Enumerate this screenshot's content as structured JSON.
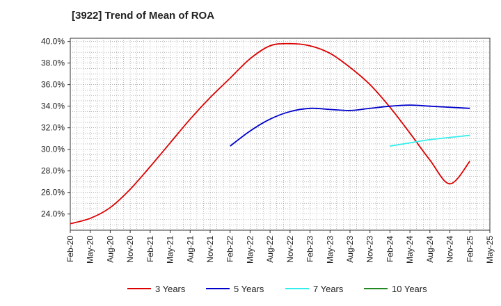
{
  "chart_data": {
    "type": "line",
    "title": "[3922]  Trend of Mean of ROA",
    "xlabel": "",
    "ylabel": "",
    "x_ticks": [
      "Feb-20",
      "May-20",
      "Aug-20",
      "Nov-20",
      "Feb-21",
      "May-21",
      "Aug-21",
      "Nov-21",
      "Feb-22",
      "May-22",
      "Aug-22",
      "Nov-22",
      "Feb-23",
      "May-23",
      "Aug-23",
      "Nov-23",
      "Feb-24",
      "May-24",
      "Aug-24",
      "Nov-24",
      "Feb-25",
      "May-25"
    ],
    "y_ticks": [
      "24.0%",
      "26.0%",
      "28.0%",
      "30.0%",
      "32.0%",
      "34.0%",
      "36.0%",
      "38.0%",
      "40.0%"
    ],
    "y_tick_values": [
      24,
      26,
      28,
      30,
      32,
      34,
      36,
      38,
      40
    ],
    "ylim": [
      22.5,
      40.3
    ],
    "grid": true,
    "legend_position": "bottom",
    "series": [
      {
        "name": "3 Years",
        "color": "#dd0000",
        "points": [
          [
            0,
            23.1
          ],
          [
            1,
            23.6
          ],
          [
            2,
            24.6
          ],
          [
            3,
            26.3
          ],
          [
            4,
            28.4
          ],
          [
            5,
            30.6
          ],
          [
            6,
            32.8
          ],
          [
            7,
            34.8
          ],
          [
            8,
            36.6
          ],
          [
            9,
            38.4
          ],
          [
            10,
            39.6
          ],
          [
            11,
            39.8
          ],
          [
            12,
            39.6
          ],
          [
            13,
            38.9
          ],
          [
            14,
            37.6
          ],
          [
            15,
            36.0
          ],
          [
            16,
            33.9
          ],
          [
            17,
            31.5
          ],
          [
            18,
            29.0
          ],
          [
            19,
            26.8
          ],
          [
            20,
            28.9
          ]
        ]
      },
      {
        "name": "5 Years",
        "color": "#0000cc",
        "points": [
          [
            8,
            30.3
          ],
          [
            9,
            31.7
          ],
          [
            10,
            32.8
          ],
          [
            11,
            33.5
          ],
          [
            12,
            33.8
          ],
          [
            13,
            33.7
          ],
          [
            14,
            33.6
          ],
          [
            15,
            33.8
          ],
          [
            16,
            34.0
          ],
          [
            17,
            34.1
          ],
          [
            18,
            34.0
          ],
          [
            19,
            33.9
          ],
          [
            20,
            33.8
          ]
        ]
      },
      {
        "name": "7 Years",
        "color": "#33eeee",
        "points": [
          [
            16,
            30.3
          ],
          [
            17,
            30.6
          ],
          [
            18,
            30.9
          ],
          [
            19,
            31.1
          ],
          [
            20,
            31.3
          ]
        ]
      },
      {
        "name": "10 Years",
        "color": "#228822",
        "points": []
      }
    ]
  }
}
